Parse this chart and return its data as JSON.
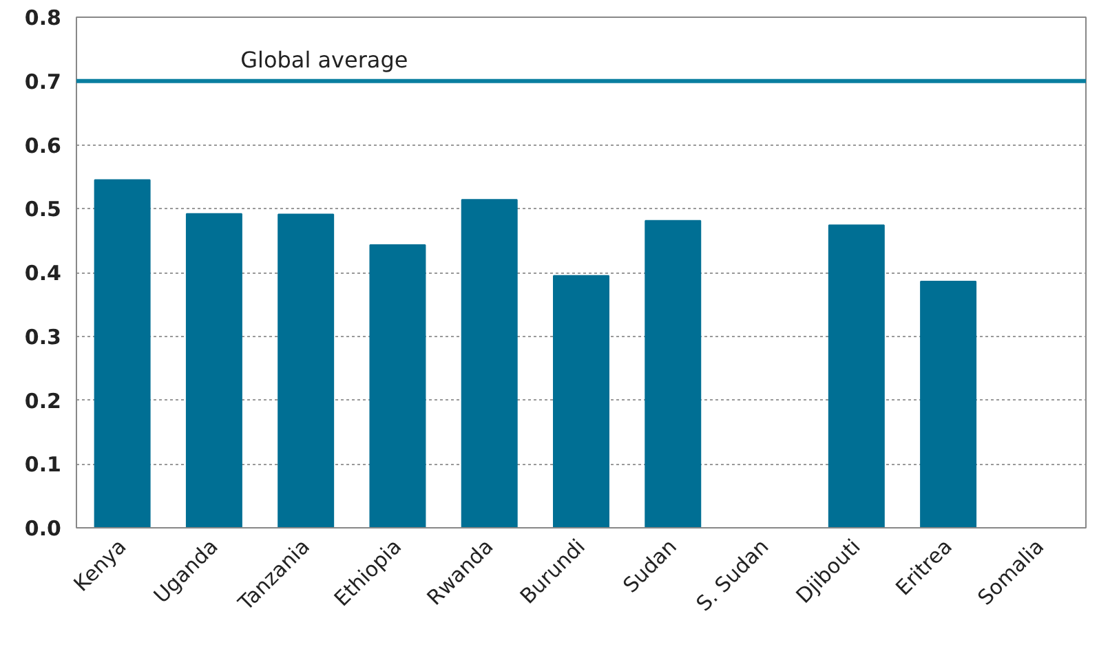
{
  "chart_data": {
    "type": "bar",
    "categories": [
      "Kenya",
      "Uganda",
      "Tanzania",
      "Ethiopia",
      "Rwanda",
      "Burundi",
      "Sudan",
      "S. Sudan",
      "Djibouti",
      "Eritrea",
      "Somalia"
    ],
    "values": [
      0.545,
      0.492,
      0.491,
      0.443,
      0.514,
      0.395,
      0.481,
      null,
      0.474,
      0.386,
      null
    ],
    "color": "#006f94",
    "ylim": [
      0,
      0.8
    ],
    "yticks": [
      {
        "value": 0,
        "label": "0.0"
      },
      0.1,
      0.2,
      0.3,
      0.4,
      0.5,
      0.6,
      0.7,
      0.8
    ],
    "grid": "y",
    "ref_lines": [
      {
        "axis": "y",
        "value": 0.7,
        "label": "Global average",
        "color": "#0a7fa0"
      }
    ]
  }
}
